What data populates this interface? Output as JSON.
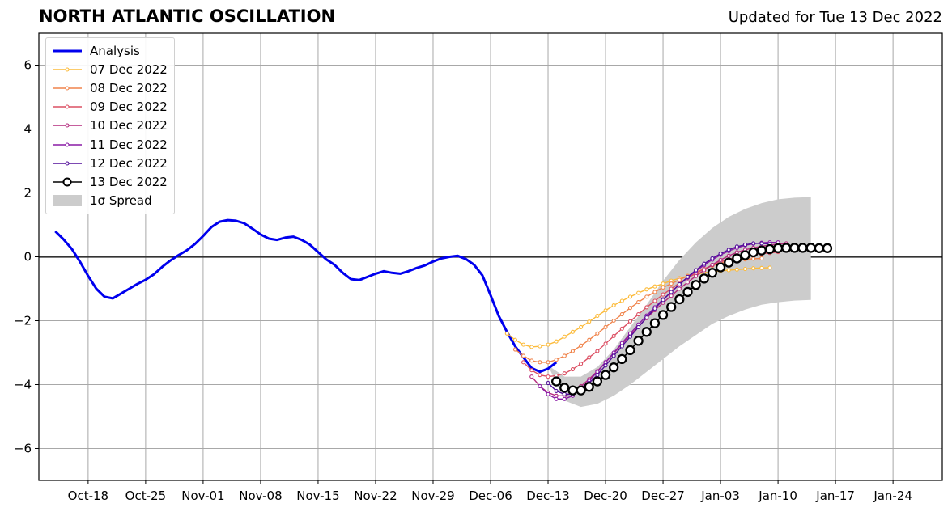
{
  "header": {
    "title": "NORTH ATLANTIC OSCILLATION",
    "updated": "Updated for Tue 13 Dec 2022"
  },
  "chart_data": {
    "type": "line",
    "title": "NORTH ATLANTIC OSCILLATION",
    "subtitle": "Updated for Tue 13 Dec 2022",
    "xlim": [
      "2022-10-12",
      "2023-01-30"
    ],
    "ylim": [
      -7,
      7
    ],
    "x_ticks": [
      "Oct-18",
      "Oct-25",
      "Nov-01",
      "Nov-08",
      "Nov-15",
      "Nov-22",
      "Nov-29",
      "Dec-06",
      "Dec-13",
      "Dec-20",
      "Dec-27",
      "Jan-03",
      "Jan-10",
      "Jan-17",
      "Jan-24"
    ],
    "x_tick_dates": [
      "2022-10-18",
      "2022-10-25",
      "2022-11-01",
      "2022-11-08",
      "2022-11-15",
      "2022-11-22",
      "2022-11-29",
      "2022-12-06",
      "2022-12-13",
      "2022-12-20",
      "2022-12-27",
      "2023-01-03",
      "2023-01-10",
      "2023-01-17",
      "2023-01-24"
    ],
    "y_ticks": [
      -6,
      -4,
      -2,
      0,
      2,
      4,
      6
    ],
    "y_tick_labels": [
      "−6",
      "−4",
      "−2",
      "0",
      "2",
      "4",
      "6"
    ],
    "grid": true,
    "zero_line": true,
    "legend_position": "top-left",
    "legend": [
      "Analysis",
      "07 Dec 2022",
      "08 Dec 2022",
      "09 Dec 2022",
      "10 Dec 2022",
      "11 Dec 2022",
      "12 Dec 2022",
      "13 Dec 2022",
      "1σ Spread"
    ],
    "analysis": {
      "name": "Analysis",
      "color": "#0000ee",
      "start_date": "2022-10-14",
      "values": [
        0.8,
        0.55,
        0.25,
        -0.15,
        -0.6,
        -1.0,
        -1.25,
        -1.3,
        -1.15,
        -1.0,
        -0.85,
        -0.72,
        -0.55,
        -0.32,
        -0.12,
        0.05,
        0.2,
        0.4,
        0.65,
        0.93,
        1.1,
        1.15,
        1.13,
        1.05,
        0.88,
        0.7,
        0.57,
        0.53,
        0.6,
        0.63,
        0.53,
        0.38,
        0.15,
        -0.08,
        -0.25,
        -0.5,
        -0.7,
        -0.73,
        -0.63,
        -0.53,
        -0.45,
        -0.5,
        -0.53,
        -0.45,
        -0.35,
        -0.27,
        -0.15,
        -0.05,
        0.0,
        0.03,
        -0.07,
        -0.25,
        -0.58,
        -1.2,
        -1.85,
        -2.35,
        -2.8,
        -3.15,
        -3.48,
        -3.6,
        -3.5,
        -3.3
      ]
    },
    "forecasts": [
      {
        "name": "07 Dec 2022",
        "color": "#fcbb3b",
        "start_date": "2022-12-08",
        "values": [
          -2.4,
          -2.6,
          -2.75,
          -2.82,
          -2.8,
          -2.75,
          -2.65,
          -2.5,
          -2.35,
          -2.2,
          -2.03,
          -1.85,
          -1.68,
          -1.52,
          -1.38,
          -1.25,
          -1.13,
          -1.02,
          -0.93,
          -0.84,
          -0.75,
          -0.67,
          -0.6,
          -0.55,
          -0.5,
          -0.47,
          -0.44,
          -0.42,
          -0.4,
          -0.38,
          -0.36,
          -0.35,
          -0.34
        ]
      },
      {
        "name": "08 Dec 2022",
        "color": "#f0844c",
        "start_date": "2022-12-09",
        "values": [
          -2.9,
          -3.1,
          -3.25,
          -3.3,
          -3.3,
          -3.22,
          -3.1,
          -2.95,
          -2.78,
          -2.6,
          -2.4,
          -2.2,
          -2.0,
          -1.8,
          -1.6,
          -1.42,
          -1.25,
          -1.1,
          -0.96,
          -0.84,
          -0.72,
          -0.6,
          -0.48,
          -0.38,
          -0.28,
          -0.2,
          -0.14,
          -0.1,
          -0.08,
          -0.06,
          -0.05
        ]
      },
      {
        "name": "09 Dec 2022",
        "color": "#dc5064",
        "start_date": "2022-12-10",
        "values": [
          -3.3,
          -3.55,
          -3.7,
          -3.75,
          -3.72,
          -3.65,
          -3.52,
          -3.35,
          -3.15,
          -2.95,
          -2.72,
          -2.48,
          -2.25,
          -2.02,
          -1.8,
          -1.58,
          -1.38,
          -1.18,
          -1.0,
          -0.82,
          -0.66,
          -0.52,
          -0.38,
          -0.26,
          -0.16,
          -0.08,
          -0.01,
          0.05,
          0.08,
          0.1,
          0.12,
          0.15
        ]
      },
      {
        "name": "10 Dec 2022",
        "color": "#b42a7d",
        "start_date": "2022-12-11",
        "values": [
          -3.75,
          -4.05,
          -4.25,
          -4.35,
          -4.35,
          -4.25,
          -4.05,
          -3.83,
          -3.58,
          -3.3,
          -3.02,
          -2.73,
          -2.45,
          -2.18,
          -1.92,
          -1.67,
          -1.44,
          -1.22,
          -1.0,
          -0.8,
          -0.6,
          -0.42,
          -0.25,
          -0.1,
          0.03,
          0.14,
          0.22,
          0.28,
          0.33,
          0.37,
          0.4,
          0.42
        ]
      },
      {
        "name": "11 Dec 2022",
        "color": "#8a1ba6",
        "start_date": "2022-12-12",
        "values": [
          -4.05,
          -4.3,
          -4.45,
          -4.45,
          -4.35,
          -4.12,
          -3.88,
          -3.6,
          -3.3,
          -3.0,
          -2.7,
          -2.4,
          -2.12,
          -1.84,
          -1.58,
          -1.33,
          -1.1,
          -0.87,
          -0.65,
          -0.45,
          -0.26,
          -0.09,
          0.06,
          0.18,
          0.28,
          0.36,
          0.41,
          0.44,
          0.45,
          0.45
        ]
      },
      {
        "name": "12 Dec 2022",
        "color": "#520f9a",
        "start_date": "2022-12-13",
        "values": [
          -3.95,
          -4.2,
          -4.3,
          -4.3,
          -4.18,
          -3.95,
          -3.7,
          -3.4,
          -3.1,
          -2.8,
          -2.5,
          -2.2,
          -1.9,
          -1.62,
          -1.35,
          -1.1,
          -0.86,
          -0.63,
          -0.42,
          -0.22,
          -0.05,
          0.1,
          0.22,
          0.32,
          0.38,
          0.42,
          0.42,
          0.4
        ]
      },
      {
        "name": "13 Dec 2022",
        "color": "#000000",
        "start_date": "2022-12-14",
        "values": [
          -3.9,
          -4.1,
          -4.18,
          -4.18,
          -4.07,
          -3.9,
          -3.7,
          -3.46,
          -3.2,
          -2.92,
          -2.63,
          -2.35,
          -2.08,
          -1.82,
          -1.57,
          -1.33,
          -1.1,
          -0.88,
          -0.68,
          -0.5,
          -0.33,
          -0.18,
          -0.05,
          0.05,
          0.14,
          0.2,
          0.24,
          0.27,
          0.28,
          0.28,
          0.28,
          0.28,
          0.27,
          0.27
        ]
      }
    ],
    "spread": {
      "name": "1σ Spread",
      "color": "#cccccc",
      "dates": [
        "2022-12-13",
        "2022-12-15",
        "2022-12-17",
        "2022-12-19",
        "2022-12-21",
        "2022-12-23",
        "2022-12-25",
        "2022-12-27",
        "2022-12-29",
        "2022-12-31",
        "2023-01-02",
        "2023-01-04",
        "2023-01-06",
        "2023-01-08",
        "2023-01-10",
        "2023-01-12",
        "2023-01-14"
      ],
      "upper": [
        -3.4,
        -3.75,
        -3.75,
        -3.45,
        -2.9,
        -2.2,
        -1.5,
        -0.75,
        -0.1,
        0.45,
        0.9,
        1.25,
        1.5,
        1.68,
        1.8,
        1.85,
        1.87
      ],
      "lower": [
        -3.4,
        -4.5,
        -4.7,
        -4.6,
        -4.35,
        -4.0,
        -3.6,
        -3.2,
        -2.8,
        -2.45,
        -2.1,
        -1.85,
        -1.65,
        -1.5,
        -1.42,
        -1.37,
        -1.35
      ]
    }
  }
}
